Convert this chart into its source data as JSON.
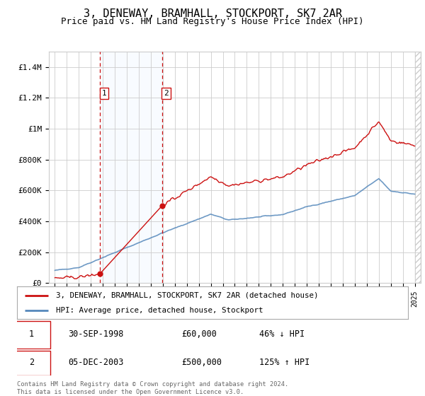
{
  "title": "3, DENEWAY, BRAMHALL, STOCKPORT, SK7 2AR",
  "subtitle": "Price paid vs. HM Land Registry's House Price Index (HPI)",
  "title_fontsize": 11,
  "subtitle_fontsize": 9,
  "sale1_yr": 1998.75,
  "sale1_price": 60000,
  "sale1_label": "1",
  "sale1_pct": "46% ↓ HPI",
  "sale1_text": "30-SEP-1998",
  "sale1_price_str": "£60,000",
  "sale2_yr": 2003.92,
  "sale2_price": 500000,
  "sale2_label": "2",
  "sale2_pct": "125% ↑ HPI",
  "sale2_text": "05-DEC-2003",
  "sale2_price_str": "£500,000",
  "hpi_line_color": "#5588bb",
  "price_line_color": "#cc1111",
  "sale_marker_color": "#cc1111",
  "vline_color": "#cc1111",
  "shade_color": "#ddeeff",
  "ylim": [
    0,
    1500000
  ],
  "yticks": [
    0,
    200000,
    400000,
    600000,
    800000,
    1000000,
    1200000,
    1400000
  ],
  "ylabel_strs": [
    "£0",
    "£200K",
    "£400K",
    "£600K",
    "£800K",
    "£1M",
    "£1.2M",
    "£1.4M"
  ],
  "background_color": "#ffffff",
  "grid_color": "#cccccc",
  "legend_label_red": "3, DENEWAY, BRAMHALL, STOCKPORT, SK7 2AR (detached house)",
  "legend_label_blue": "HPI: Average price, detached house, Stockport",
  "footer": "Contains HM Land Registry data © Crown copyright and database right 2024.\nThis data is licensed under the Open Government Licence v3.0."
}
